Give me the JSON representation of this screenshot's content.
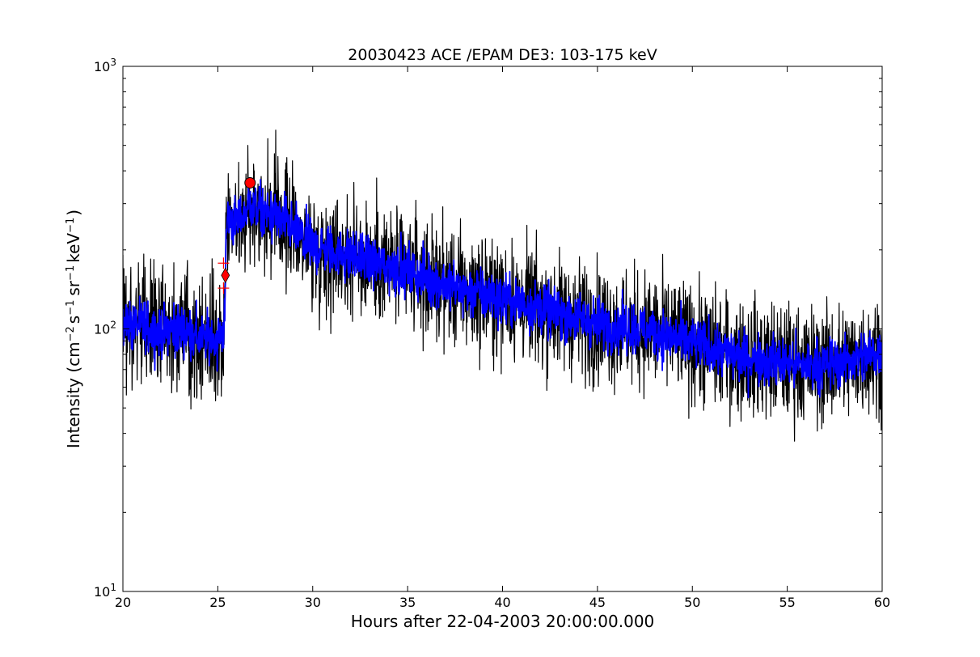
{
  "chart_data": {
    "type": "line",
    "title": "20030423 ACE /EPAM DE3: 103-175 keV",
    "xlabel": "Hours after 22-04-2003 20:00:00.000",
    "ylabel_parts": {
      "a": "Intensity (cm",
      "a_sup": "−2",
      "b": "s",
      "b_sup": "−1",
      "c": "sr",
      "c_sup": "−1",
      "d": "keV",
      "d_sup": "−1",
      "e": ")"
    },
    "xlim": [
      20,
      60
    ],
    "ylim": [
      10,
      1000
    ],
    "yscale": "log",
    "x_ticks": [
      {
        "value": 20,
        "label": "20"
      },
      {
        "value": 25,
        "label": "25"
      },
      {
        "value": 30,
        "label": "30"
      },
      {
        "value": 35,
        "label": "35"
      },
      {
        "value": 40,
        "label": "40"
      },
      {
        "value": 45,
        "label": "45"
      },
      {
        "value": 50,
        "label": "50"
      },
      {
        "value": 55,
        "label": "55"
      },
      {
        "value": 60,
        "label": "60"
      }
    ],
    "y_ticks": [
      {
        "value": 10,
        "base": "10",
        "exp": "1"
      },
      {
        "value": 100,
        "base": "10",
        "exp": "2"
      },
      {
        "value": 1000,
        "base": "10",
        "exp": "3"
      }
    ],
    "envelope": {
      "x": [
        20,
        21,
        22,
        23,
        24,
        25,
        25.3,
        25.5,
        26,
        26.7,
        27.5,
        28.5,
        30,
        32,
        35,
        38,
        40,
        42,
        45,
        48,
        50,
        52,
        54,
        56,
        58,
        60
      ],
      "y": [
        105,
        102,
        98,
        100,
        92,
        92,
        95,
        270,
        250,
        300,
        275,
        255,
        205,
        190,
        165,
        140,
        130,
        120,
        105,
        98,
        88,
        80,
        76,
        72,
        75,
        82
      ]
    },
    "series": [
      {
        "color": "#000000",
        "noise": 0.16,
        "linewidth": 1.2
      },
      {
        "color": "#0000ff",
        "noise": 0.07,
        "linewidth": 1.8
      }
    ],
    "markers": [
      {
        "shape": "circle",
        "x": 26.7,
        "y": 360,
        "color": "#ff0000"
      },
      {
        "shape": "diamond",
        "x": 25.4,
        "y": 160,
        "color": "#ff0000"
      },
      {
        "shape": "plus",
        "x": 25.3,
        "y": 178,
        "color": "#ff0000"
      },
      {
        "shape": "plus",
        "x": 25.3,
        "y": 143,
        "color": "#ff0000"
      }
    ],
    "grid": false,
    "legend": "none"
  }
}
